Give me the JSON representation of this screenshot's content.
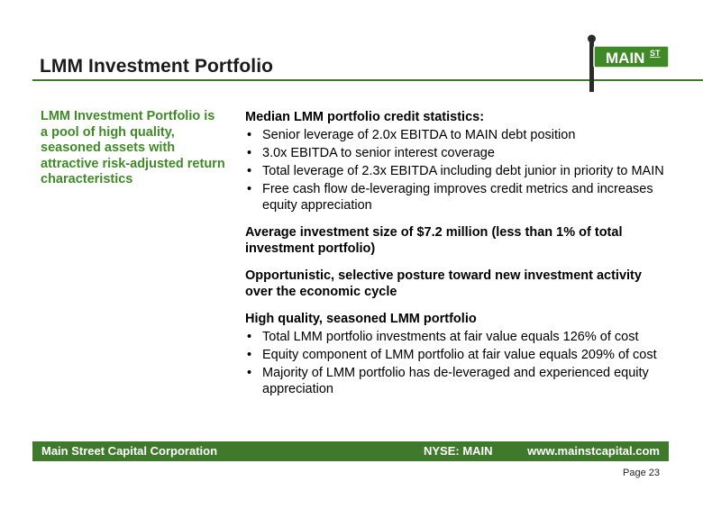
{
  "header": {
    "title": "LMM Investment Portfolio",
    "logo_text": "MAIN",
    "logo_superscript": "ST",
    "accent_color": "#3f7a2c"
  },
  "left_callout": "LMM Investment Portfolio is a pool of high quality, seasoned assets with attractive risk-adjusted return characteristics",
  "sections": [
    {
      "heading": "Median LMM portfolio credit statistics:",
      "bullets": [
        "Senior leverage of 2.0x EBITDA to MAIN debt position",
        "3.0x EBITDA to senior interest coverage",
        "Total leverage of 2.3x EBITDA including debt junior in priority to MAIN",
        "Free cash flow de-leveraging improves credit metrics and increases equity appreciation"
      ]
    },
    {
      "heading": "Average investment size of $7.2 million (less than 1% of total investment portfolio)",
      "bullets": []
    },
    {
      "heading": "Opportunistic, selective posture toward new investment activity over the economic cycle",
      "bullets": []
    },
    {
      "heading": "High quality, seasoned LMM portfolio",
      "bullets": [
        "Total LMM portfolio investments at fair value equals 126% of cost",
        "Equity component of LMM portfolio at fair value equals 209% of cost",
        "Majority of LMM portfolio has de-leveraged and experienced equity appreciation"
      ]
    }
  ],
  "footer": {
    "company": "Main Street Capital Corporation",
    "ticker": "NYSE: MAIN",
    "url": "www.mainstcapital.com"
  },
  "page_label": "Page 23"
}
